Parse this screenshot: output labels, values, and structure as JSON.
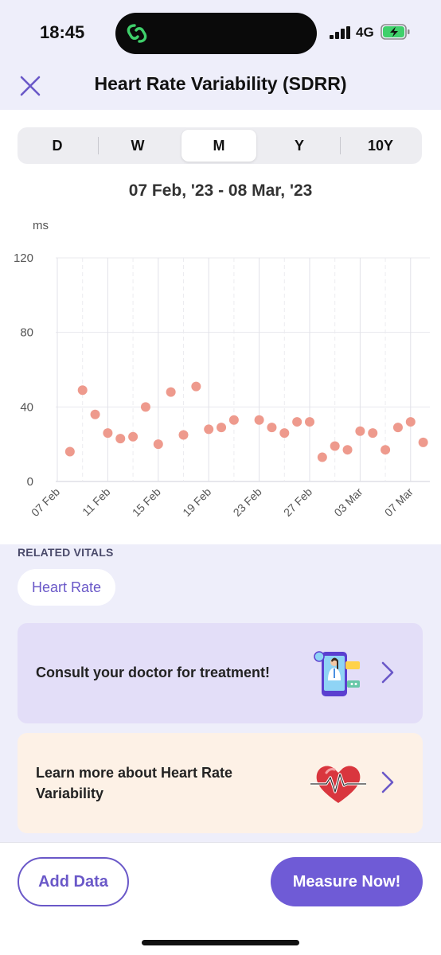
{
  "status_bar": {
    "time": "18:45",
    "network": "4G",
    "icons": [
      "app-link-icon",
      "signal-bars-icon",
      "battery-charging-icon"
    ],
    "accent": "#3fd06b"
  },
  "header": {
    "title": "Heart Rate Variability (SDRR)",
    "close_icon": "close-icon"
  },
  "range_tabs": [
    {
      "label": "D",
      "active": false
    },
    {
      "label": "W",
      "active": false
    },
    {
      "label": "M",
      "active": true
    },
    {
      "label": "Y",
      "active": false
    },
    {
      "label": "10Y",
      "active": false
    }
  ],
  "date_range": "07 Feb, '23 - 08 Mar, '23",
  "chart_data": {
    "type": "scatter",
    "ylabel": "ms",
    "ylim": [
      0,
      120
    ],
    "yticks": [
      0,
      40,
      80,
      120
    ],
    "xtick_labels": [
      "07 Feb",
      "11 Feb",
      "15 Feb",
      "19 Feb",
      "23 Feb",
      "27 Feb",
      "03 Mar",
      "07 Mar"
    ],
    "x": [
      "08 Feb",
      "09 Feb",
      "10 Feb",
      "11 Feb",
      "12 Feb",
      "13 Feb",
      "14 Feb",
      "15 Feb",
      "16 Feb",
      "17 Feb",
      "18 Feb",
      "19 Feb",
      "20 Feb",
      "21 Feb",
      "23 Feb",
      "24 Feb",
      "25 Feb",
      "26 Feb",
      "27 Feb",
      "28 Feb",
      "01 Mar",
      "02 Mar",
      "03 Mar",
      "04 Mar",
      "05 Mar",
      "06 Mar",
      "07 Mar",
      "08 Mar"
    ],
    "y": [
      16,
      49,
      36,
      26,
      23,
      24,
      40,
      20,
      48,
      25,
      51,
      28,
      29,
      33,
      33,
      29,
      26,
      32,
      32,
      13,
      19,
      17,
      27,
      26,
      17,
      29,
      32,
      21
    ],
    "grid": true,
    "point_color": "#ee9a8d"
  },
  "related_vitals": {
    "label": "RELATED VITALS",
    "chips": [
      "Heart Rate"
    ]
  },
  "cards": [
    {
      "text": "Consult your doctor for treatment!",
      "icon": "doctor-phone-icon",
      "bg": "#e3def8"
    },
    {
      "text": "Learn more about Heart Rate Variability",
      "icon": "heart-pulse-icon",
      "bg": "#fdf1e6"
    }
  ],
  "actions": {
    "add_data": "Add Data",
    "measure_now": "Measure Now!",
    "accent": "#6f5bd6"
  }
}
